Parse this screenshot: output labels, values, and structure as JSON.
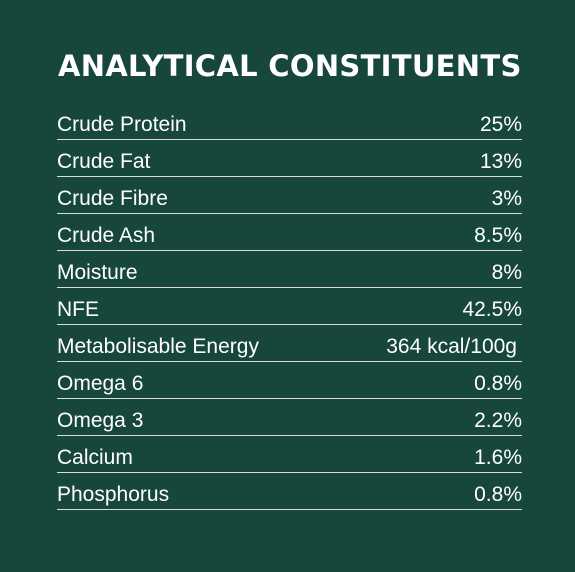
{
  "title": "ANALYTICAL CONSTITUENTS",
  "rows": [
    {
      "label": "Crude Protein",
      "value": "25%"
    },
    {
      "label": "Crude Fat",
      "value": "13%"
    },
    {
      "label": "Crude Fibre",
      "value": "3%"
    },
    {
      "label": "Crude Ash",
      "value": "8.5%"
    },
    {
      "label": "Moisture",
      "value": "8%"
    },
    {
      "label": "NFE",
      "value": "42.5%"
    },
    {
      "label": "Metabolisable Energy",
      "value": "364 kcal/100g"
    },
    {
      "label": "Omega 6",
      "value": "0.8%"
    },
    {
      "label": "Omega 3",
      "value": "2.2%"
    },
    {
      "label": "Calcium",
      "value": "1.6%"
    },
    {
      "label": "Phosphorus",
      "value": "0.8%"
    }
  ],
  "colors": {
    "background": "#17463b",
    "text": "#ffffff",
    "divider": "#d6dfdc"
  }
}
